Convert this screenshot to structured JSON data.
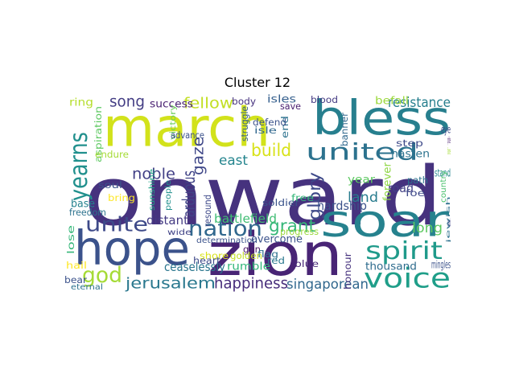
{
  "title": "Cluster 12",
  "words": [
    {
      "text": "onward",
      "color": "#46327e"
    },
    {
      "text": "march",
      "color": "#d2e21b"
    },
    {
      "text": "bless",
      "color": "#277f8e"
    },
    {
      "text": "hope",
      "color": "#3b528b"
    },
    {
      "text": "zion",
      "color": "#482475"
    },
    {
      "text": "soar",
      "color": "#26828e"
    },
    {
      "text": "voice",
      "color": "#1f9e89"
    },
    {
      "text": "united",
      "color": "#2c728e"
    },
    {
      "text": "spirit",
      "color": "#1f9a8a"
    },
    {
      "text": "nation",
      "color": "#31688e"
    },
    {
      "text": "unite",
      "color": "#3e4a89"
    },
    {
      "text": "yearns",
      "color": "#21908d"
    },
    {
      "text": "god",
      "color": "#a5db36"
    },
    {
      "text": "jerusalem",
      "color": "#2a788e"
    },
    {
      "text": "happiness",
      "color": "#472d7b"
    },
    {
      "text": "singaporean",
      "color": "#31688e"
    },
    {
      "text": "grant",
      "color": "#35b779"
    },
    {
      "text": "glory",
      "color": "#3e4989"
    },
    {
      "text": "jewish",
      "color": "#2d708e"
    },
    {
      "text": "build",
      "color": "#d8e219"
    },
    {
      "text": "fellow",
      "color": "#c2df23"
    },
    {
      "text": "resistance",
      "color": "#277f8e"
    },
    {
      "text": "song",
      "color": "#433d84"
    },
    {
      "text": "noble",
      "color": "#424086"
    },
    {
      "text": "gaze",
      "color": "#3f4788"
    },
    {
      "text": "east",
      "color": "#25858e"
    },
    {
      "text": "long",
      "color": "#5ec962"
    },
    {
      "text": "land",
      "color": "#287c8e"
    },
    {
      "text": "road",
      "color": "#424086"
    },
    {
      "text": "hardship",
      "color": "#3b528b"
    },
    {
      "text": "arduous",
      "color": "#414487"
    },
    {
      "text": "distant",
      "color": "#443a83"
    },
    {
      "text": "battlefield",
      "color": "#3fbc73"
    },
    {
      "text": "overcome",
      "color": "#3b528b"
    },
    {
      "text": "ceaselessly",
      "color": "#2a768e"
    },
    {
      "text": "rumble",
      "color": "#32b67a"
    },
    {
      "text": "thousand",
      "color": "#2f6c8e"
    },
    {
      "text": "mingles",
      "color": "#3b528b"
    },
    {
      "text": "year",
      "color": "#5ec962"
    },
    {
      "text": "forever",
      "color": "#8fd744"
    },
    {
      "text": "stand",
      "color": "#24868e"
    },
    {
      "text": "sand",
      "color": "#404688"
    },
    {
      "text": "eye",
      "color": "#3e4989"
    },
    {
      "text": "hasten",
      "color": "#2c738e"
    },
    {
      "text": "step",
      "color": "#3e4a89"
    },
    {
      "text": "banner",
      "color": "#31688e"
    },
    {
      "text": "end",
      "color": "#2c728e"
    },
    {
      "text": "blood",
      "color": "#443a83"
    },
    {
      "text": "isles",
      "color": "#355f8d"
    },
    {
      "text": "save",
      "color": "#481c6e"
    },
    {
      "text": "body",
      "color": "#46327e"
    },
    {
      "text": "success",
      "color": "#481f71"
    },
    {
      "text": "ring",
      "color": "#b5de2b"
    },
    {
      "text": "aspiration",
      "color": "#5ec962"
    },
    {
      "text": "struggle",
      "color": "#355f8d"
    },
    {
      "text": "defend",
      "color": "#3b528b"
    },
    {
      "text": "isle",
      "color": "#31688e"
    },
    {
      "text": "victory",
      "color": "#6ccd5a"
    },
    {
      "text": "advance",
      "color": "#3b528b"
    },
    {
      "text": "endure",
      "color": "#a5db36"
    },
    {
      "text": "soldier",
      "color": "#3a538b"
    },
    {
      "text": "free",
      "color": "#35b779"
    },
    {
      "text": "people",
      "color": "#21908d"
    },
    {
      "text": "sunshine",
      "color": "#20a386"
    },
    {
      "text": "wide",
      "color": "#414487"
    },
    {
      "text": "gun",
      "color": "#471365"
    },
    {
      "text": "progress",
      "color": "#9bd93c"
    },
    {
      "text": "determination",
      "color": "#3b528b"
    },
    {
      "text": "shore",
      "color": "#d8e219"
    },
    {
      "text": "heart",
      "color": "#3e4989"
    },
    {
      "text": "flag",
      "color": "#2c728e"
    },
    {
      "text": "golden",
      "color": "#c2df23"
    },
    {
      "text": "red",
      "color": "#2a788e"
    },
    {
      "text": "blue",
      "color": "#482878"
    },
    {
      "text": "honour",
      "color": "#46327e"
    },
    {
      "text": "resound",
      "color": "#3e4989"
    },
    {
      "text": "soul",
      "color": "#3b528b"
    },
    {
      "text": "bring",
      "color": "#fde725"
    },
    {
      "text": "base",
      "color": "#26828e"
    },
    {
      "text": "freedom",
      "color": "#2c728e"
    },
    {
      "text": "lose",
      "color": "#35b779"
    },
    {
      "text": "hail",
      "color": "#fde725"
    },
    {
      "text": "bear",
      "color": "#3b528b"
    },
    {
      "text": "eternal",
      "color": "#2c728e"
    },
    {
      "text": "befall",
      "color": "#9bd93c"
    },
    {
      "text": "pride",
      "color": "#481c6e"
    },
    {
      "text": "fame",
      "color": "#a5db36"
    },
    {
      "text": "country",
      "color": "#4ac16d"
    },
    {
      "text": "foe",
      "color": "#3e4989"
    },
    {
      "text": "path",
      "color": "#2c728e"
    }
  ]
}
